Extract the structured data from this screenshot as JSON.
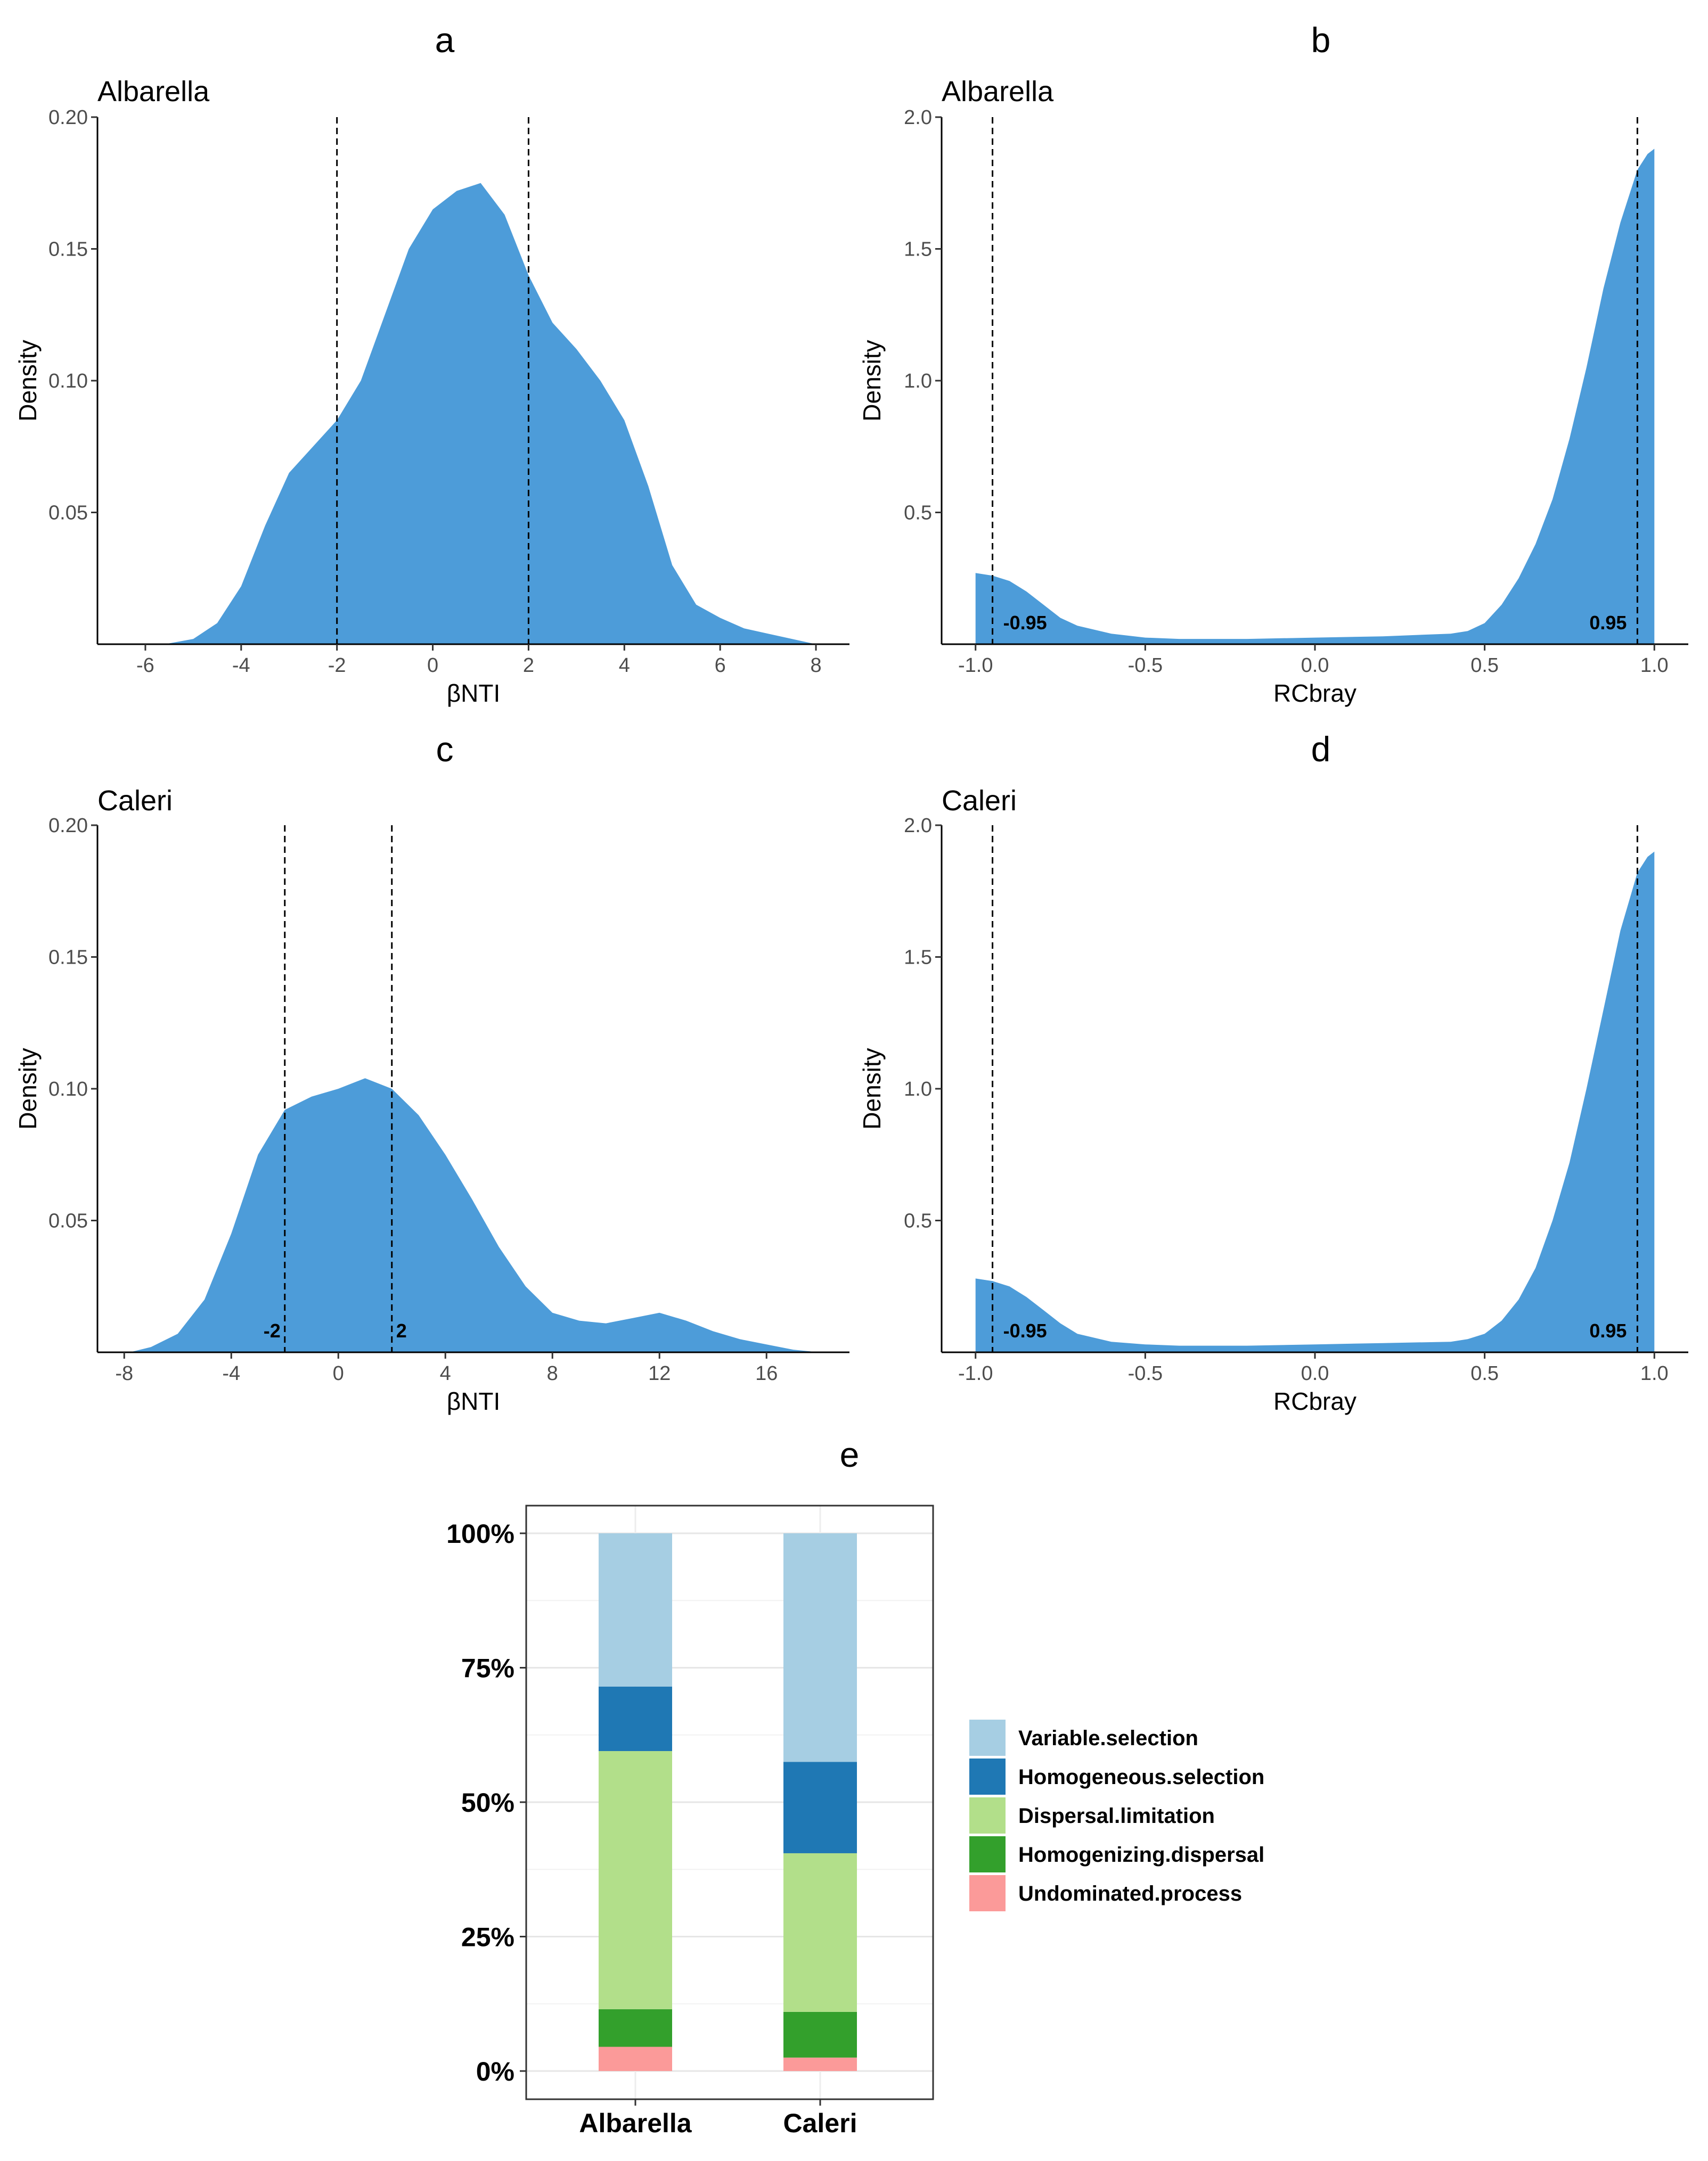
{
  "figure": {
    "panel_letters": [
      "a",
      "b",
      "c",
      "d",
      "e"
    ]
  },
  "colors": {
    "density_fill": "#4D9CD9",
    "variable_selection": "#A6CEE3",
    "homogeneous_selection": "#1F78B4",
    "dispersal_limitation": "#B2DF8A",
    "homogenizing_dispersal": "#33A02C",
    "undominated_process": "#FB9A99"
  },
  "chart_data": [
    {
      "panel": "a",
      "type": "area",
      "title": "Albarella",
      "xlabel": "βNTI",
      "ylabel": "Density",
      "xlim": [
        -7,
        8.7
      ],
      "ylim": [
        0,
        0.2
      ],
      "xticks": [
        "-6",
        "-4",
        "-2",
        "0",
        "2",
        "4",
        "6",
        "8"
      ],
      "yticks": [
        "0.05",
        "0.10",
        "0.15",
        "0.20"
      ],
      "thresholds": [
        -2,
        2
      ],
      "threshold_labels": [],
      "x": [
        -5.6,
        -5,
        -4.5,
        -4,
        -3.5,
        -3,
        -2.5,
        -2,
        -1.5,
        -1,
        -0.5,
        0,
        0.5,
        1,
        1.5,
        2,
        2.5,
        3,
        3.5,
        4,
        4.5,
        5,
        5.5,
        6,
        6.5,
        7,
        7.5,
        8
      ],
      "y": [
        0,
        0.002,
        0.008,
        0.022,
        0.045,
        0.065,
        0.075,
        0.085,
        0.1,
        0.125,
        0.15,
        0.165,
        0.172,
        0.175,
        0.163,
        0.14,
        0.122,
        0.112,
        0.1,
        0.085,
        0.06,
        0.03,
        0.015,
        0.01,
        0.006,
        0.004,
        0.002,
        0
      ]
    },
    {
      "panel": "b",
      "type": "area",
      "title": "Albarella",
      "xlabel": "RCbray",
      "ylabel": "Density",
      "xlim": [
        -1.1,
        1.1
      ],
      "ylim": [
        0,
        2.0
      ],
      "xticks": [
        "-1.0",
        "-0.5",
        "0.0",
        "0.5",
        "1.0"
      ],
      "yticks": [
        "0.5",
        "1.0",
        "1.5",
        "2.0"
      ],
      "thresholds": [
        -0.95,
        0.95
      ],
      "threshold_labels": [
        "-0.95",
        "0.95"
      ],
      "x": [
        -1,
        -0.95,
        -0.9,
        -0.85,
        -0.8,
        -0.75,
        -0.7,
        -0.6,
        -0.5,
        -0.4,
        -0.2,
        0,
        0.2,
        0.4,
        0.45,
        0.5,
        0.55,
        0.6,
        0.65,
        0.7,
        0.75,
        0.8,
        0.85,
        0.9,
        0.95,
        0.98,
        1
      ],
      "y": [
        0.27,
        0.26,
        0.24,
        0.2,
        0.15,
        0.1,
        0.07,
        0.04,
        0.025,
        0.02,
        0.02,
        0.025,
        0.03,
        0.04,
        0.05,
        0.08,
        0.15,
        0.25,
        0.38,
        0.55,
        0.78,
        1.05,
        1.35,
        1.6,
        1.8,
        1.86,
        1.88
      ]
    },
    {
      "panel": "c",
      "type": "area",
      "title": "Caleri",
      "xlabel": "βNTI",
      "ylabel": "Density",
      "xlim": [
        -9,
        19.1
      ],
      "ylim": [
        0,
        0.2
      ],
      "xticks": [
        "-8",
        "-4",
        "0",
        "4",
        "8",
        "12",
        "16"
      ],
      "yticks": [
        "0.05",
        "0.10",
        "0.15",
        "0.20"
      ],
      "thresholds": [
        -2,
        2
      ],
      "threshold_labels": [
        "-2",
        "2"
      ],
      "x": [
        -7.8,
        -7,
        -6,
        -5,
        -4,
        -3,
        -2,
        -1,
        0,
        1,
        2,
        3,
        4,
        5,
        6,
        7,
        8,
        9,
        10,
        11,
        12,
        13,
        14,
        15,
        16,
        17,
        18
      ],
      "y": [
        0,
        0.002,
        0.007,
        0.02,
        0.045,
        0.075,
        0.092,
        0.097,
        0.1,
        0.104,
        0.1,
        0.09,
        0.075,
        0.058,
        0.04,
        0.025,
        0.015,
        0.012,
        0.011,
        0.013,
        0.015,
        0.012,
        0.008,
        0.005,
        0.003,
        0.001,
        0
      ]
    },
    {
      "panel": "d",
      "type": "area",
      "title": "Caleri",
      "xlabel": "RCbray",
      "ylabel": "Density",
      "xlim": [
        -1.1,
        1.1
      ],
      "ylim": [
        0,
        2.0
      ],
      "xticks": [
        "-1.0",
        "-0.5",
        "0.0",
        "0.5",
        "1.0"
      ],
      "yticks": [
        "0.5",
        "1.0",
        "1.5",
        "2.0"
      ],
      "thresholds": [
        -0.95,
        0.95
      ],
      "threshold_labels": [
        "-0.95",
        "0.95"
      ],
      "x": [
        -1,
        -0.95,
        -0.9,
        -0.85,
        -0.8,
        -0.75,
        -0.7,
        -0.6,
        -0.5,
        -0.4,
        -0.2,
        0,
        0.2,
        0.4,
        0.45,
        0.5,
        0.55,
        0.6,
        0.65,
        0.7,
        0.75,
        0.8,
        0.85,
        0.9,
        0.95,
        0.98,
        1
      ],
      "y": [
        0.28,
        0.27,
        0.25,
        0.21,
        0.16,
        0.11,
        0.07,
        0.04,
        0.03,
        0.025,
        0.025,
        0.03,
        0.035,
        0.04,
        0.05,
        0.07,
        0.12,
        0.2,
        0.32,
        0.5,
        0.72,
        1.0,
        1.3,
        1.6,
        1.82,
        1.88,
        1.9
      ]
    },
    {
      "panel": "e",
      "type": "bar",
      "stacked": true,
      "categories": [
        "Albarella",
        "Caleri"
      ],
      "yticks": [
        "0%",
        "25%",
        "50%",
        "75%",
        "100%"
      ],
      "ylim": [
        0,
        100
      ],
      "series": [
        {
          "name": "Undominated.process",
          "values": [
            4.5,
            2.5
          ]
        },
        {
          "name": "Homogenizing.dispersal",
          "values": [
            7,
            8.5
          ]
        },
        {
          "name": "Dispersal.limitation",
          "values": [
            48,
            29.5
          ]
        },
        {
          "name": "Homogeneous.selection",
          "values": [
            12,
            17
          ]
        },
        {
          "name": "Variable.selection",
          "values": [
            28.5,
            42.5
          ]
        }
      ],
      "legend": [
        "Variable.selection",
        "Homogeneous.selection",
        "Dispersal.limitation",
        "Homogenizing.dispersal",
        "Undominated.process"
      ],
      "legend_position": "right"
    }
  ]
}
